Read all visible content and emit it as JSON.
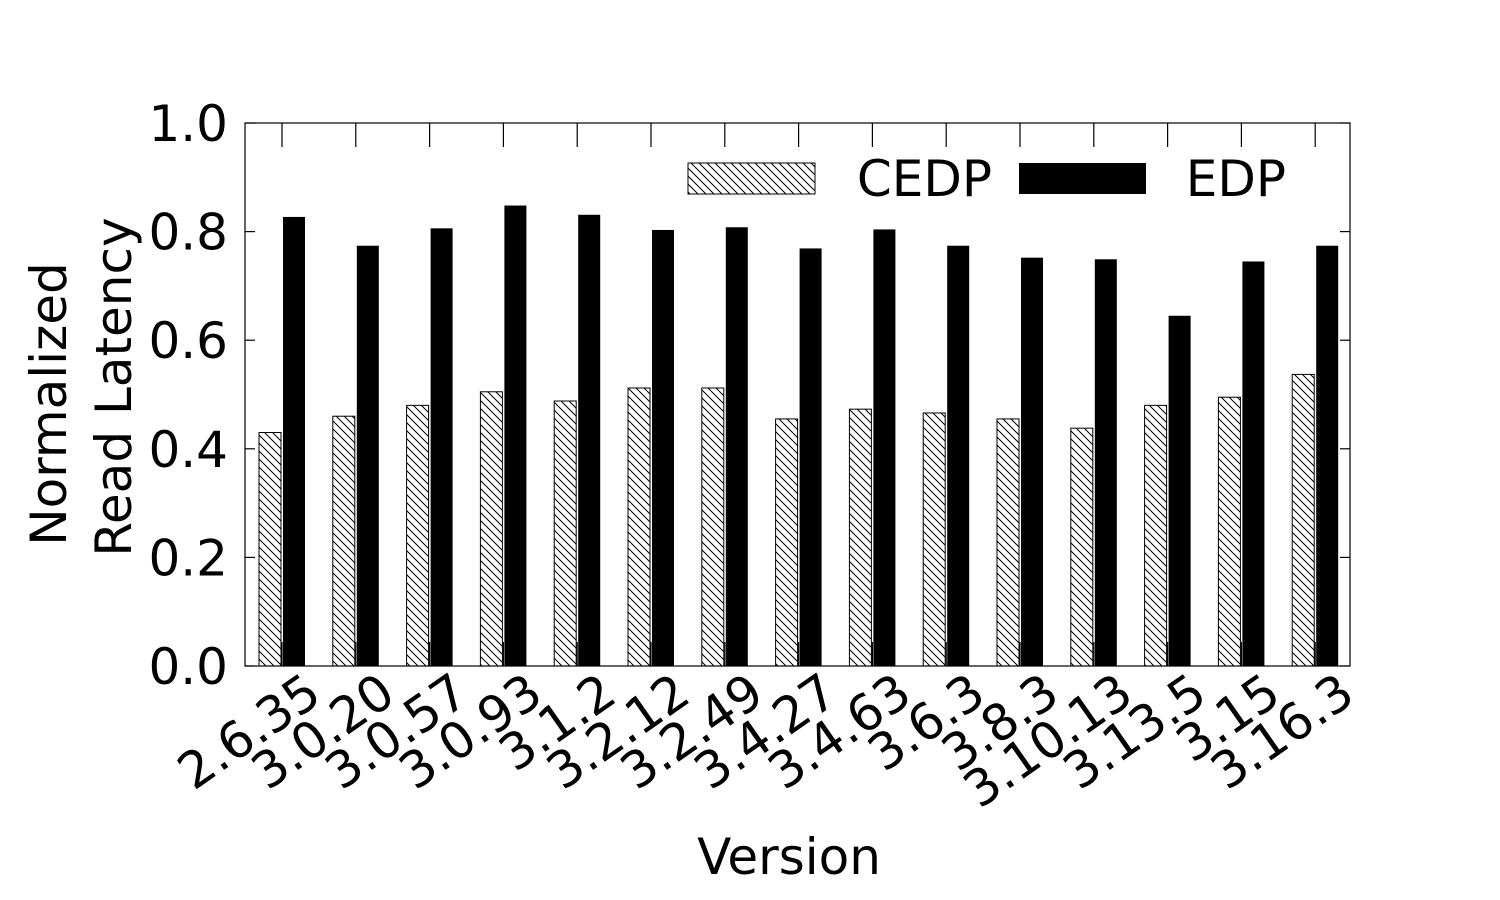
{
  "chart_data": {
    "type": "bar",
    "title": "",
    "xlabel": "Version",
    "ylabel": [
      "Normalized",
      "Read Latency"
    ],
    "ylim": [
      0,
      1.0
    ],
    "yticks": [
      "0.0",
      "0.2",
      "0.4",
      "0.6",
      "0.8",
      "1.0"
    ],
    "legend_position": "top-right",
    "grid": false,
    "categories": [
      "2.6.35",
      "3.0.20",
      "3.0.57",
      "3.0.93",
      "3.1.2",
      "3.2.12",
      "3.2.49",
      "3.4.27",
      "3.4.63",
      "3.6.3",
      "3.8.3",
      "3.10.13",
      "3.13.5",
      "3.15",
      "3.16.3"
    ],
    "series": [
      {
        "name": "CEDP",
        "pattern": "hatch",
        "values": [
          0.43,
          0.46,
          0.48,
          0.505,
          0.488,
          0.512,
          0.512,
          0.455,
          0.473,
          0.466,
          0.455,
          0.438,
          0.48,
          0.495,
          0.537
        ]
      },
      {
        "name": "EDP",
        "color": "#000000",
        "values": [
          0.827,
          0.774,
          0.806,
          0.848,
          0.831,
          0.803,
          0.808,
          0.769,
          0.804,
          0.774,
          0.752,
          0.749,
          0.645,
          0.745,
          0.774
        ]
      }
    ]
  }
}
